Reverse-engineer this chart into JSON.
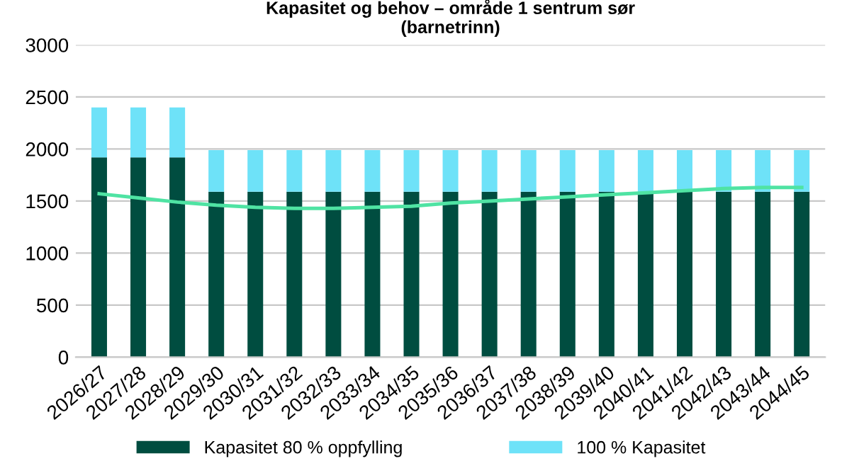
{
  "chart_data": {
    "type": "bar",
    "title": "Kapasitet og behov – område 1 sentrum sør\n(barnetrinn)",
    "categories": [
      "2026/27",
      "2027/28",
      "2028/29",
      "2029/30",
      "2030/31",
      "2031/32",
      "2032/33",
      "2033/34",
      "2034/35",
      "2035/36",
      "2036/37",
      "2037/38",
      "2038/39",
      "2039/40",
      "2040/41",
      "2041/42",
      "2042/43",
      "2043/44",
      "2044/45"
    ],
    "stacked": true,
    "series": [
      {
        "name": "Kapasitet 80 % oppfylling",
        "color": "#004d40",
        "values": [
          1920,
          1920,
          1920,
          1590,
          1590,
          1590,
          1590,
          1590,
          1590,
          1590,
          1590,
          1590,
          1590,
          1590,
          1590,
          1590,
          1590,
          1590,
          1590
        ]
      },
      {
        "name": "100 % Kapasitet",
        "color": "#6ee2f8",
        "values": [
          480,
          480,
          480,
          400,
          400,
          400,
          400,
          400,
          400,
          400,
          400,
          400,
          400,
          400,
          400,
          400,
          400,
          400,
          400
        ]
      },
      {
        "type": "line",
        "color": "#4fe3a3",
        "values": [
          1570,
          1530,
          1490,
          1460,
          1440,
          1430,
          1430,
          1440,
          1450,
          1480,
          1500,
          1520,
          1540,
          1560,
          1580,
          1600,
          1620,
          1630,
          1630
        ]
      }
    ],
    "ylim": [
      0,
      3000
    ],
    "yticks": [
      0,
      500,
      1000,
      1500,
      2000,
      2500,
      3000
    ],
    "grid": "y",
    "legend": "bottom"
  }
}
